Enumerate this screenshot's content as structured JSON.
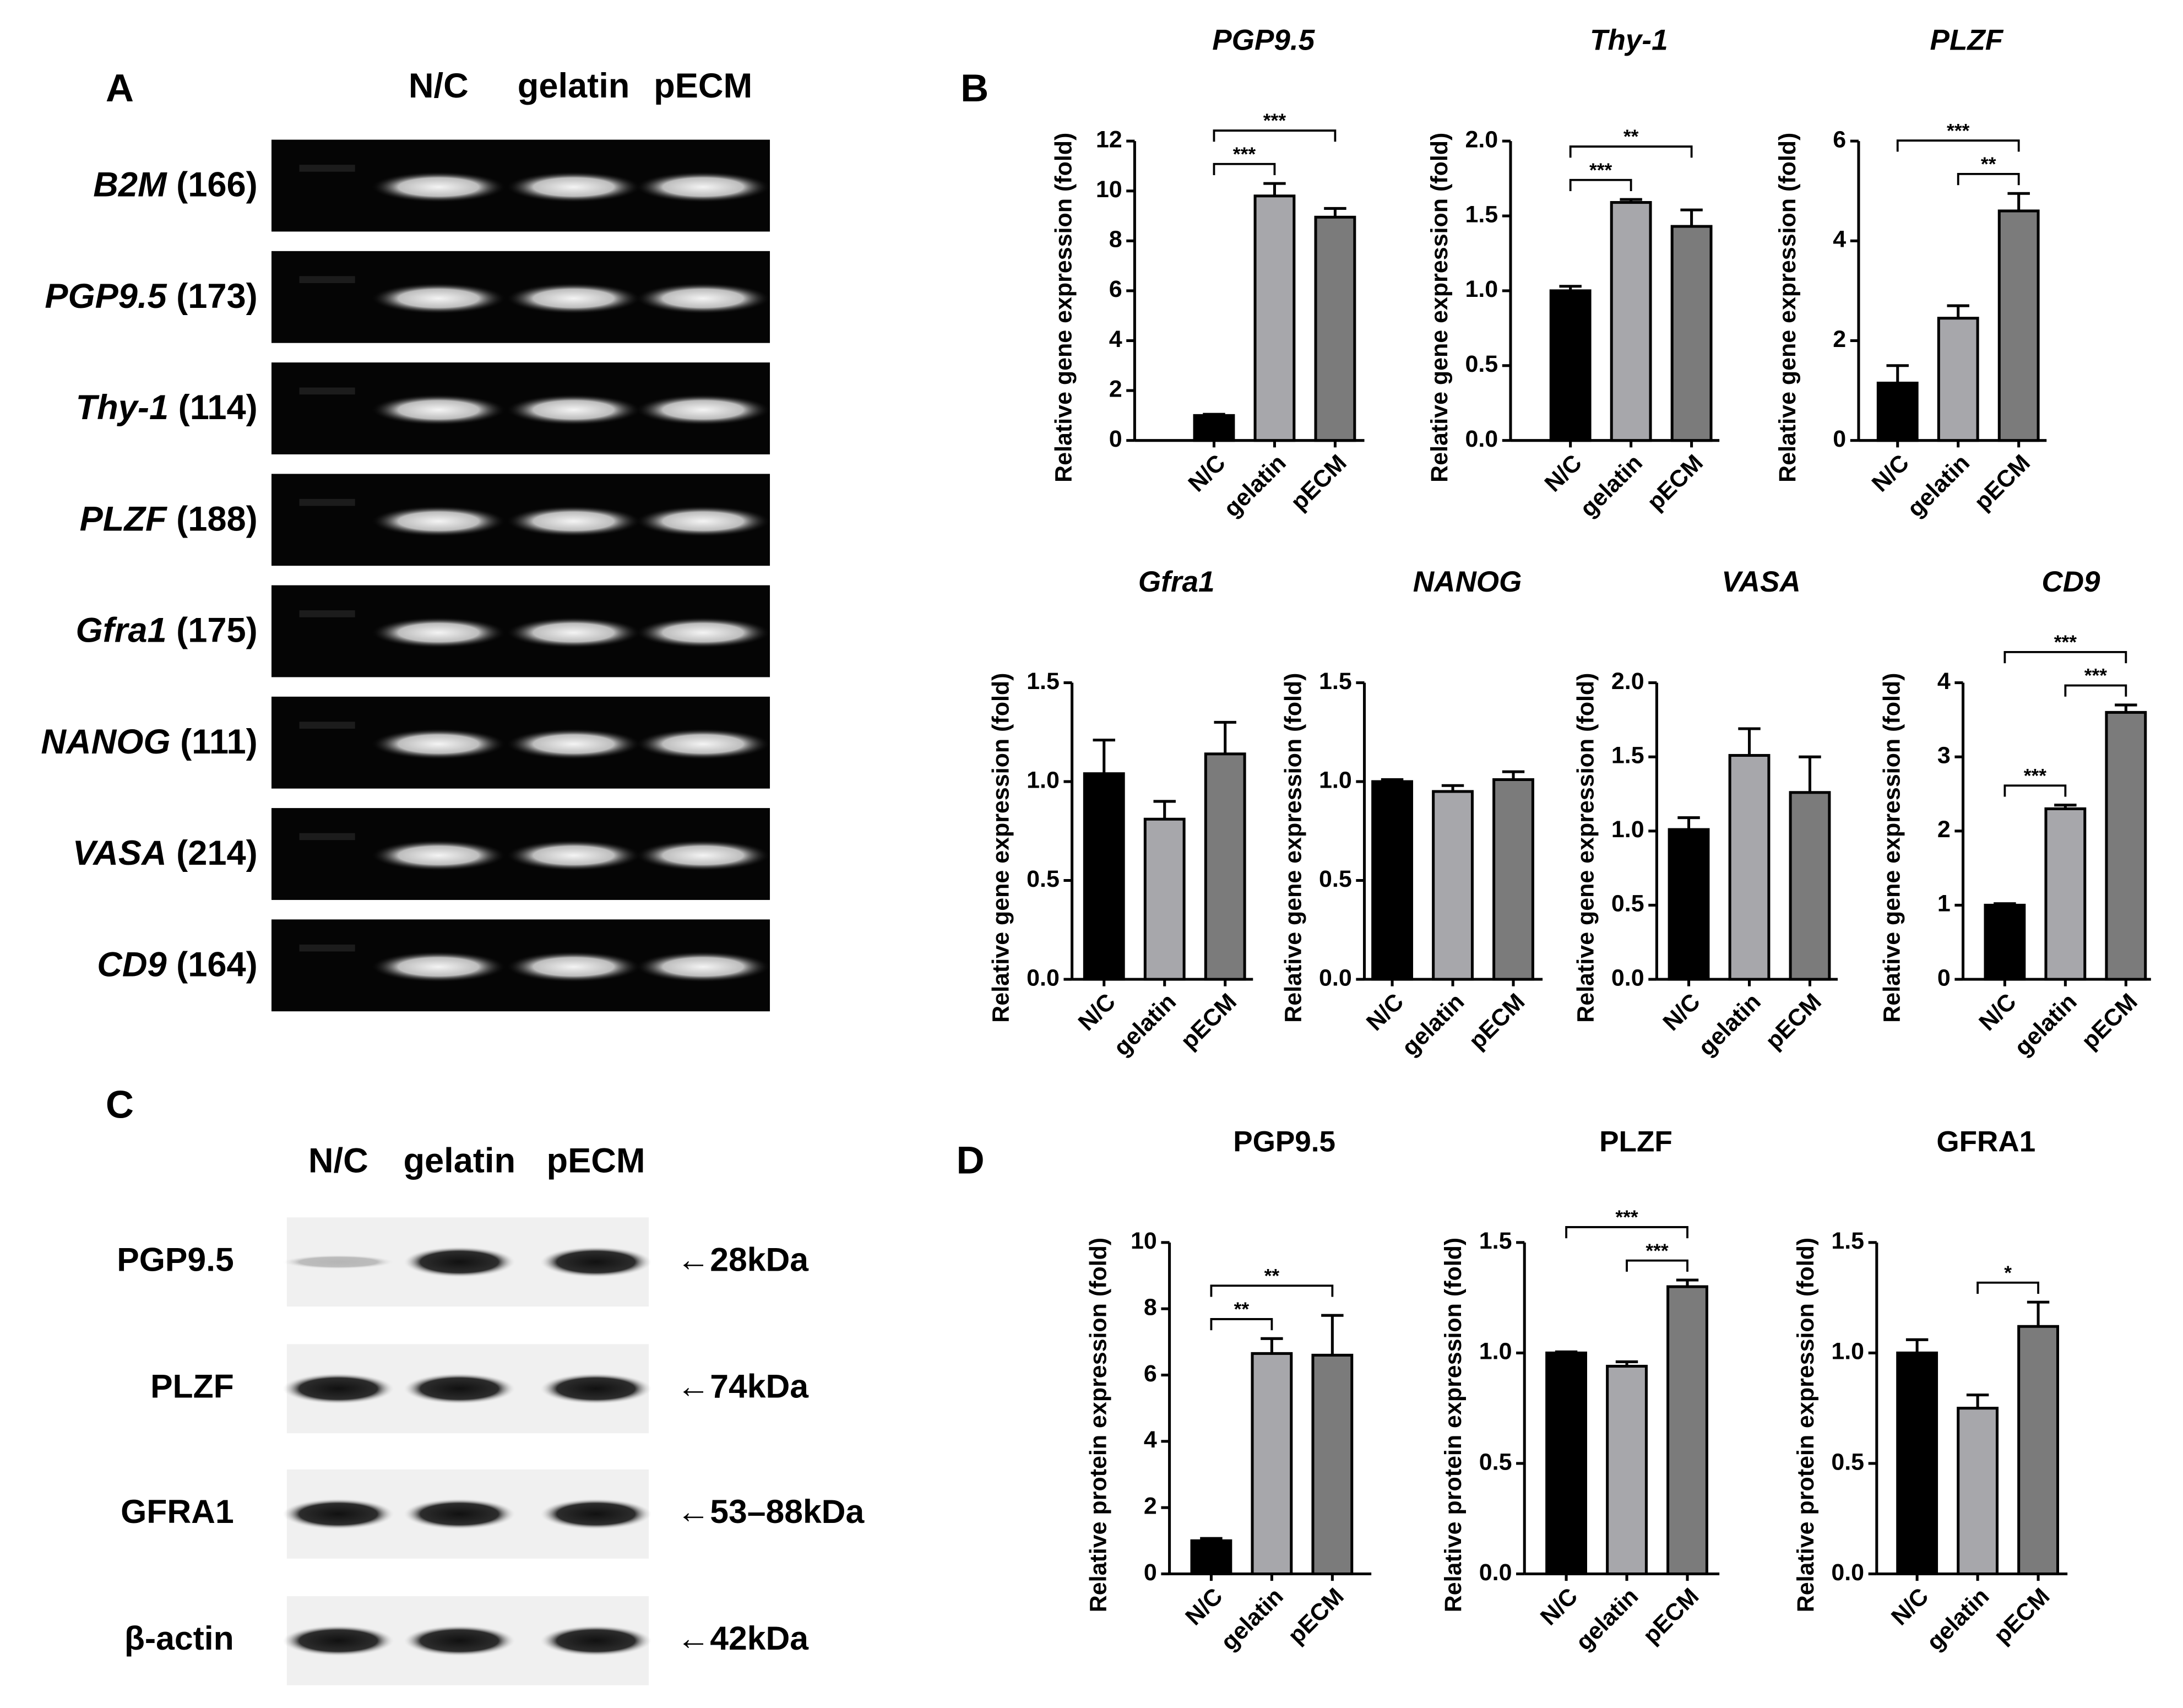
{
  "panel_labels": [
    "A",
    "B",
    "C",
    "D"
  ],
  "gel": {
    "lanes": [
      "N/C",
      "gelatin",
      "pECM"
    ],
    "rows": [
      {
        "gene": "B2M",
        "size": "(166)"
      },
      {
        "gene": "PGP9.5",
        "size": "(173)"
      },
      {
        "gene": "Thy-1",
        "size": "(114)"
      },
      {
        "gene": "PLZF",
        "size": "(188)"
      },
      {
        "gene": "Gfra1",
        "size": "(175)"
      },
      {
        "gene": "NANOG",
        "size": "(111)"
      },
      {
        "gene": "VASA",
        "size": "(214)"
      },
      {
        "gene": "CD9",
        "size": "(164)"
      }
    ]
  },
  "blot": {
    "lanes": [
      "N/C",
      "gelatin",
      "pECM"
    ],
    "rows": [
      {
        "protein": "PGP9.5",
        "size": "←28kDa"
      },
      {
        "protein": "PLZF",
        "size": "←74kDa"
      },
      {
        "protein": "GFRA1",
        "size": "←53–88kDa"
      },
      {
        "protein": "β-actin",
        "size": "←42kDa"
      }
    ]
  },
  "chart_data": [
    {
      "type": "bar",
      "title": "PGP9.5",
      "italic": true,
      "ylabel": "Relative gene expression (fold)",
      "categories": [
        "N/C",
        "gelatin",
        "pECM"
      ],
      "values": [
        1.0,
        9.8,
        8.95
      ],
      "errors": [
        0.05,
        0.5,
        0.35
      ],
      "colors": [
        "#000000",
        "#a7a7ab",
        "#7b7b7b"
      ],
      "ylim": [
        0,
        12
      ],
      "yticks": [
        0,
        2,
        4,
        6,
        8,
        10,
        12
      ],
      "brackets": [
        {
          "pair": [
            "N/C",
            "gelatin"
          ],
          "label": "***"
        },
        {
          "pair": [
            "N/C",
            "pECM"
          ],
          "label": "***"
        }
      ]
    },
    {
      "type": "bar",
      "title": "Thy-1",
      "italic": true,
      "ylabel": "Relative gene expression (fold)",
      "categories": [
        "N/C",
        "gelatin",
        "pECM"
      ],
      "values": [
        1.0,
        1.59,
        1.43
      ],
      "errors": [
        0.03,
        0.02,
        0.11
      ],
      "colors": [
        "#000000",
        "#a7a7ab",
        "#7b7b7b"
      ],
      "ylim": [
        0,
        2
      ],
      "yticks": [
        {
          "value": 0,
          "label": "0.0"
        },
        0.5,
        {
          "value": 1,
          "label": "1.0"
        },
        1.5,
        {
          "value": 2,
          "label": "2.0"
        }
      ],
      "brackets": [
        {
          "pair": [
            "N/C",
            "gelatin"
          ],
          "label": "***"
        },
        {
          "pair": [
            "N/C",
            "pECM"
          ],
          "label": "**"
        }
      ]
    },
    {
      "type": "bar",
      "title": "PLZF",
      "italic": true,
      "ylabel": "Relative gene expression (fold)",
      "categories": [
        "N/C",
        "gelatin",
        "pECM"
      ],
      "values": [
        1.15,
        2.45,
        4.6
      ],
      "errors": [
        0.35,
        0.25,
        0.35
      ],
      "colors": [
        "#000000",
        "#a7a7ab",
        "#7b7b7b"
      ],
      "ylim": [
        0,
        6
      ],
      "yticks": [
        0,
        2,
        4,
        6
      ],
      "brackets": [
        {
          "pair": [
            "gelatin",
            "pECM"
          ],
          "label": "**"
        },
        {
          "pair": [
            "N/C",
            "pECM"
          ],
          "label": "***"
        }
      ]
    },
    {
      "type": "bar",
      "title": "Gfra1",
      "italic": true,
      "ylabel": "Relative gene expression (fold)",
      "categories": [
        "N/C",
        "gelatin",
        "pECM"
      ],
      "values": [
        1.04,
        0.81,
        1.14
      ],
      "errors": [
        0.17,
        0.09,
        0.16
      ],
      "colors": [
        "#000000",
        "#a7a7ab",
        "#7b7b7b"
      ],
      "ylim": [
        0,
        1.5
      ],
      "yticks": [
        {
          "value": 0,
          "label": "0.0"
        },
        0.5,
        {
          "value": 1,
          "label": "1.0"
        },
        1.5
      ],
      "brackets": []
    },
    {
      "type": "bar",
      "title": "NANOG",
      "italic": true,
      "ylabel": "Relative gene expression (fold)",
      "categories": [
        "N/C",
        "gelatin",
        "pECM"
      ],
      "values": [
        1.0,
        0.95,
        1.01
      ],
      "errors": [
        0.01,
        0.03,
        0.04
      ],
      "colors": [
        "#000000",
        "#a7a7ab",
        "#7b7b7b"
      ],
      "ylim": [
        0,
        1.5
      ],
      "yticks": [
        {
          "value": 0,
          "label": "0.0"
        },
        0.5,
        {
          "value": 1,
          "label": "1.0"
        },
        1.5
      ],
      "brackets": []
    },
    {
      "type": "bar",
      "title": "VASA",
      "italic": true,
      "ylabel": "Relative gene expression (fold)",
      "categories": [
        "N/C",
        "gelatin",
        "pECM"
      ],
      "values": [
        1.01,
        1.51,
        1.26
      ],
      "errors": [
        0.08,
        0.18,
        0.24
      ],
      "colors": [
        "#000000",
        "#a7a7ab",
        "#7b7b7b"
      ],
      "ylim": [
        0,
        2
      ],
      "yticks": [
        {
          "value": 0,
          "label": "0.0"
        },
        0.5,
        {
          "value": 1,
          "label": "1.0"
        },
        1.5,
        {
          "value": 2,
          "label": "2.0"
        }
      ],
      "brackets": []
    },
    {
      "type": "bar",
      "title": "CD9",
      "italic": true,
      "ylabel": "Relative gene expression (fold)",
      "categories": [
        "N/C",
        "gelatin",
        "pECM"
      ],
      "values": [
        1.0,
        2.3,
        3.6
      ],
      "errors": [
        0.02,
        0.05,
        0.1
      ],
      "colors": [
        "#000000",
        "#a7a7ab",
        "#7b7b7b"
      ],
      "ylim": [
        0,
        4
      ],
      "yticks": [
        0,
        1,
        2,
        3,
        4
      ],
      "brackets": [
        {
          "pair": [
            "N/C",
            "gelatin"
          ],
          "label": "***"
        },
        {
          "pair": [
            "gelatin",
            "pECM"
          ],
          "label": "***"
        },
        {
          "pair": [
            "N/C",
            "pECM"
          ],
          "label": "***"
        }
      ]
    },
    {
      "type": "bar",
      "title": "PGP9.5",
      "italic": false,
      "ylabel": "Relative protein expression (fold)",
      "categories": [
        "N/C",
        "gelatin",
        "pECM"
      ],
      "values": [
        1.0,
        6.65,
        6.6
      ],
      "errors": [
        0.07,
        0.45,
        1.2
      ],
      "colors": [
        "#000000",
        "#a7a7ab",
        "#7b7b7b"
      ],
      "ylim": [
        0,
        10
      ],
      "yticks": [
        0,
        2,
        4,
        6,
        8,
        10
      ],
      "brackets": [
        {
          "pair": [
            "N/C",
            "gelatin"
          ],
          "label": "**"
        },
        {
          "pair": [
            "N/C",
            "pECM"
          ],
          "label": "**"
        }
      ]
    },
    {
      "type": "bar",
      "title": "PLZF",
      "italic": false,
      "ylabel": "Relative protein expression (fold)",
      "categories": [
        "N/C",
        "gelatin",
        "pECM"
      ],
      "values": [
        1.0,
        0.94,
        1.3
      ],
      "errors": [
        0.005,
        0.02,
        0.03
      ],
      "colors": [
        "#000000",
        "#a7a7ab",
        "#7b7b7b"
      ],
      "ylim": [
        0,
        1.5
      ],
      "yticks": [
        {
          "value": 0,
          "label": "0.0"
        },
        0.5,
        {
          "value": 1,
          "label": "1.0"
        },
        1.5
      ],
      "brackets": [
        {
          "pair": [
            "gelatin",
            "pECM"
          ],
          "label": "***"
        },
        {
          "pair": [
            "N/C",
            "pECM"
          ],
          "label": "***"
        }
      ]
    },
    {
      "type": "bar",
      "title": "GFRA1",
      "italic": false,
      "ylabel": "Relative protein expression (fold)",
      "categories": [
        "N/C",
        "gelatin",
        "pECM"
      ],
      "values": [
        1.0,
        0.75,
        1.12
      ],
      "errors": [
        0.06,
        0.06,
        0.11
      ],
      "colors": [
        "#000000",
        "#a7a7ab",
        "#7b7b7b"
      ],
      "ylim": [
        0,
        1.5
      ],
      "yticks": [
        {
          "value": 0,
          "label": "0.0"
        },
        0.5,
        {
          "value": 1,
          "label": "1.0"
        },
        1.5
      ],
      "brackets": [
        {
          "pair": [
            "gelatin",
            "pECM"
          ],
          "label": "*"
        }
      ]
    }
  ]
}
